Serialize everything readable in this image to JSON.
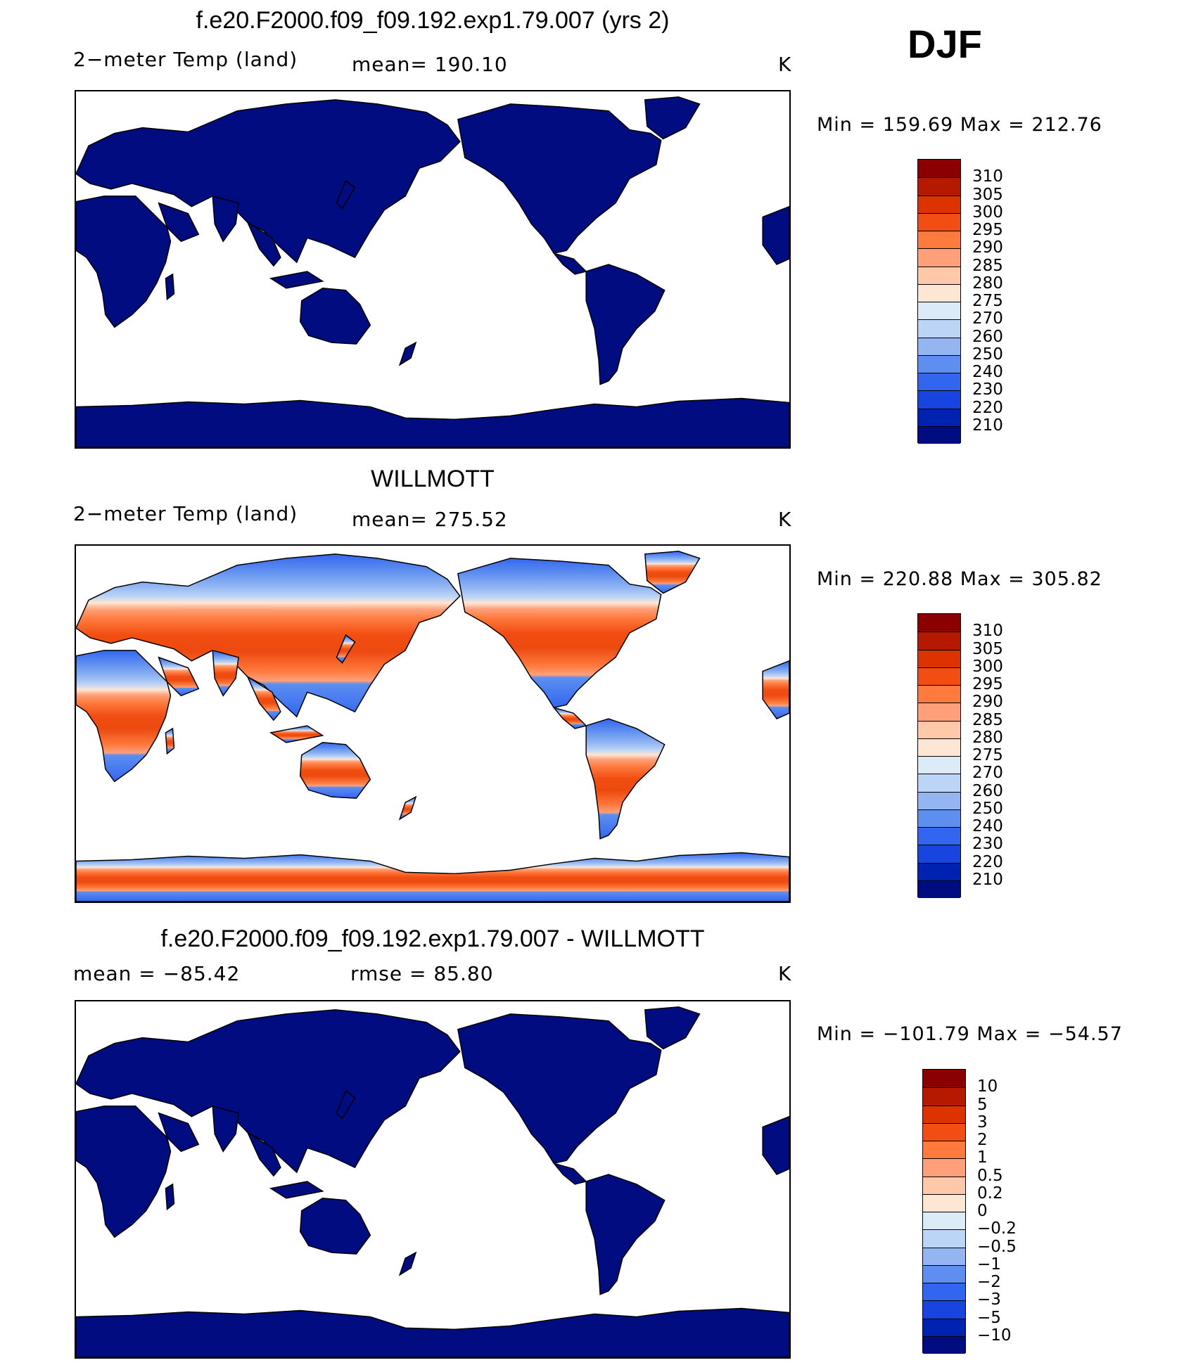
{
  "season": "DJF",
  "panels": [
    {
      "title": "f.e20.F2000.f09_f09.192.exp1.79.007 (yrs 2)",
      "left_text": "2−meter Temp (land)",
      "mid_text": "mean= 190.10",
      "units": "K",
      "minmax": "Min = 159.69 Max = 212.76",
      "field": "model",
      "colorbar": "abs"
    },
    {
      "title": "WILLMOTT",
      "left_text": "2−meter Temp (land)",
      "mid_text": "mean= 275.52",
      "units": "K",
      "minmax": "Min = 220.88 Max = 305.82",
      "field": "obs",
      "colorbar": "abs"
    },
    {
      "title": "f.e20.F2000.f09_f09.192.exp1.79.007 - WILLMOTT",
      "left_text": "mean = −85.42",
      "mid_text": "rmse = 85.80",
      "units": "K",
      "minmax": "Min = −101.79 Max = −54.57",
      "field": "diff",
      "colorbar": "diff"
    }
  ],
  "colorbars": {
    "abs": {
      "labels": [
        "310",
        "305",
        "300",
        "295",
        "290",
        "285",
        "280",
        "275",
        "270",
        "260",
        "250",
        "240",
        "230",
        "220",
        "210"
      ],
      "colors": [
        "#8b0000",
        "#b51a00",
        "#dc3300",
        "#f24d12",
        "#ff7a3d",
        "#ffa07a",
        "#ffc8a8",
        "#fde6d4",
        "#dcebf8",
        "#bcd4f5",
        "#93b6f3",
        "#5d8ef0",
        "#3366f0",
        "#1845e0",
        "#0022b0",
        "#000c80"
      ]
    },
    "diff": {
      "labels": [
        "10",
        "5",
        "3",
        "2",
        "1",
        "0.5",
        "0.2",
        "0",
        "−0.2",
        "−0.5",
        "−1",
        "−2",
        "−3",
        "−5",
        "−10"
      ],
      "colors": [
        "#8b0000",
        "#b51a00",
        "#dc3300",
        "#f24d12",
        "#ff7a3d",
        "#ffa07a",
        "#ffc8a8",
        "#fde6d4",
        "#dcebf8",
        "#bcd4f5",
        "#93b6f3",
        "#5d8ef0",
        "#3366f0",
        "#1845e0",
        "#0022b0",
        "#000c80"
      ]
    }
  },
  "colors": {
    "model_land": "#000c80",
    "diff_land": "#000c80",
    "ocean": "#ffffff",
    "coast": "#000000"
  }
}
